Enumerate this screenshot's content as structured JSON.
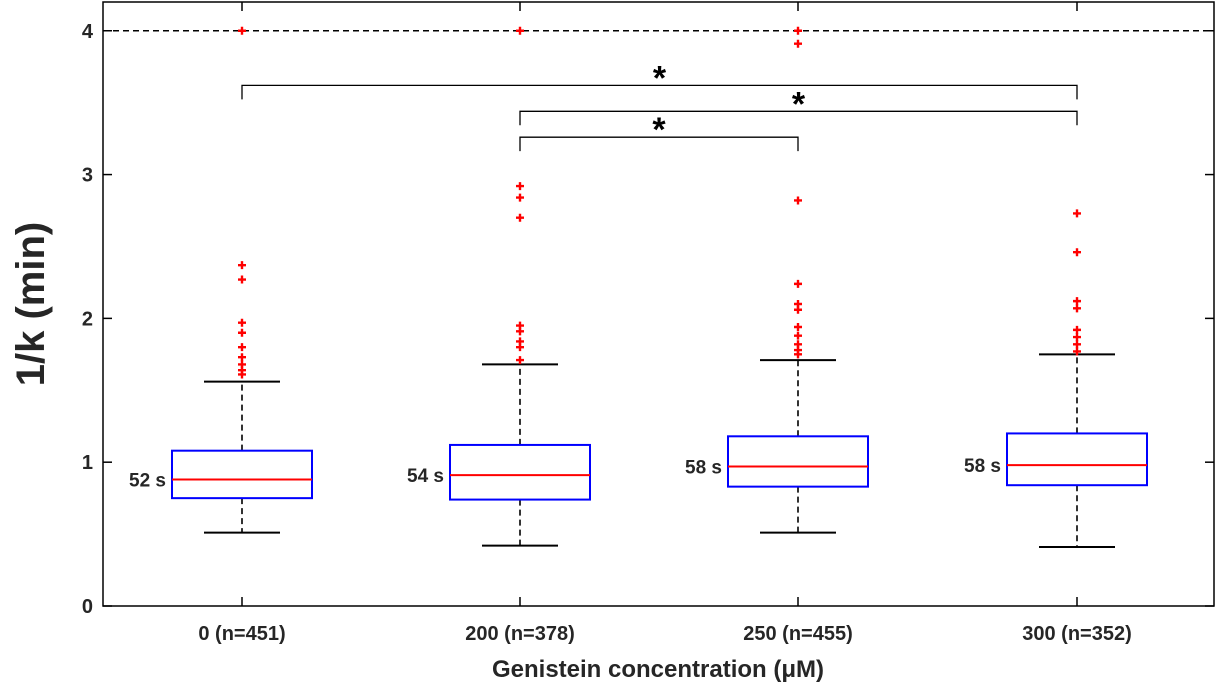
{
  "chart_data": {
    "type": "box",
    "xlabel": "Genistein concentration (μM)",
    "ylabel": "1/k (min)",
    "ylim": [
      0,
      4.2
    ],
    "yticks": [
      0,
      1,
      2,
      3,
      4
    ],
    "reference_line": {
      "y": 4,
      "style": "dashed"
    },
    "colors": {
      "box": "#0000ff",
      "median": "#ff0000",
      "outlier": "#ff0000",
      "whisker": "#000000"
    },
    "categories": [
      "0 (n=451)",
      "200 (n=378)",
      "250 (n=455)",
      "300 (n=352)"
    ],
    "boxes": [
      {
        "category": "0 (n=451)",
        "q1": 0.75,
        "median": 0.88,
        "q3": 1.08,
        "whisker_low": 0.51,
        "whisker_high": 1.56,
        "median_label": "52 s",
        "outliers": [
          1.61,
          1.64,
          1.68,
          1.73,
          1.8,
          1.9,
          1.97,
          2.27,
          2.37,
          4.0
        ]
      },
      {
        "category": "200 (n=378)",
        "q1": 0.74,
        "median": 0.91,
        "q3": 1.12,
        "whisker_low": 0.42,
        "whisker_high": 1.68,
        "median_label": "54 s",
        "outliers": [
          1.71,
          1.8,
          1.84,
          1.91,
          1.95,
          2.7,
          2.84,
          2.92,
          4.0
        ]
      },
      {
        "category": "250 (n=455)",
        "q1": 0.83,
        "median": 0.97,
        "q3": 1.18,
        "whisker_low": 0.51,
        "whisker_high": 1.71,
        "median_label": "58 s",
        "outliers": [
          1.75,
          1.78,
          1.82,
          1.88,
          1.94,
          2.06,
          2.1,
          2.24,
          2.82,
          3.91,
          4.0
        ]
      },
      {
        "category": "300 (n=352)",
        "q1": 0.84,
        "median": 0.98,
        "q3": 1.2,
        "whisker_low": 0.41,
        "whisker_high": 1.75,
        "median_label": "58 s",
        "outliers": [
          1.77,
          1.82,
          1.87,
          1.92,
          2.07,
          2.12,
          2.46,
          2.73
        ]
      }
    ],
    "significance": [
      {
        "from": 0,
        "to": 3,
        "y": 3.62,
        "label": "*"
      },
      {
        "from": 1,
        "to": 3,
        "y": 3.44,
        "label": "*"
      },
      {
        "from": 1,
        "to": 2,
        "y": 3.26,
        "label": "*"
      }
    ]
  }
}
